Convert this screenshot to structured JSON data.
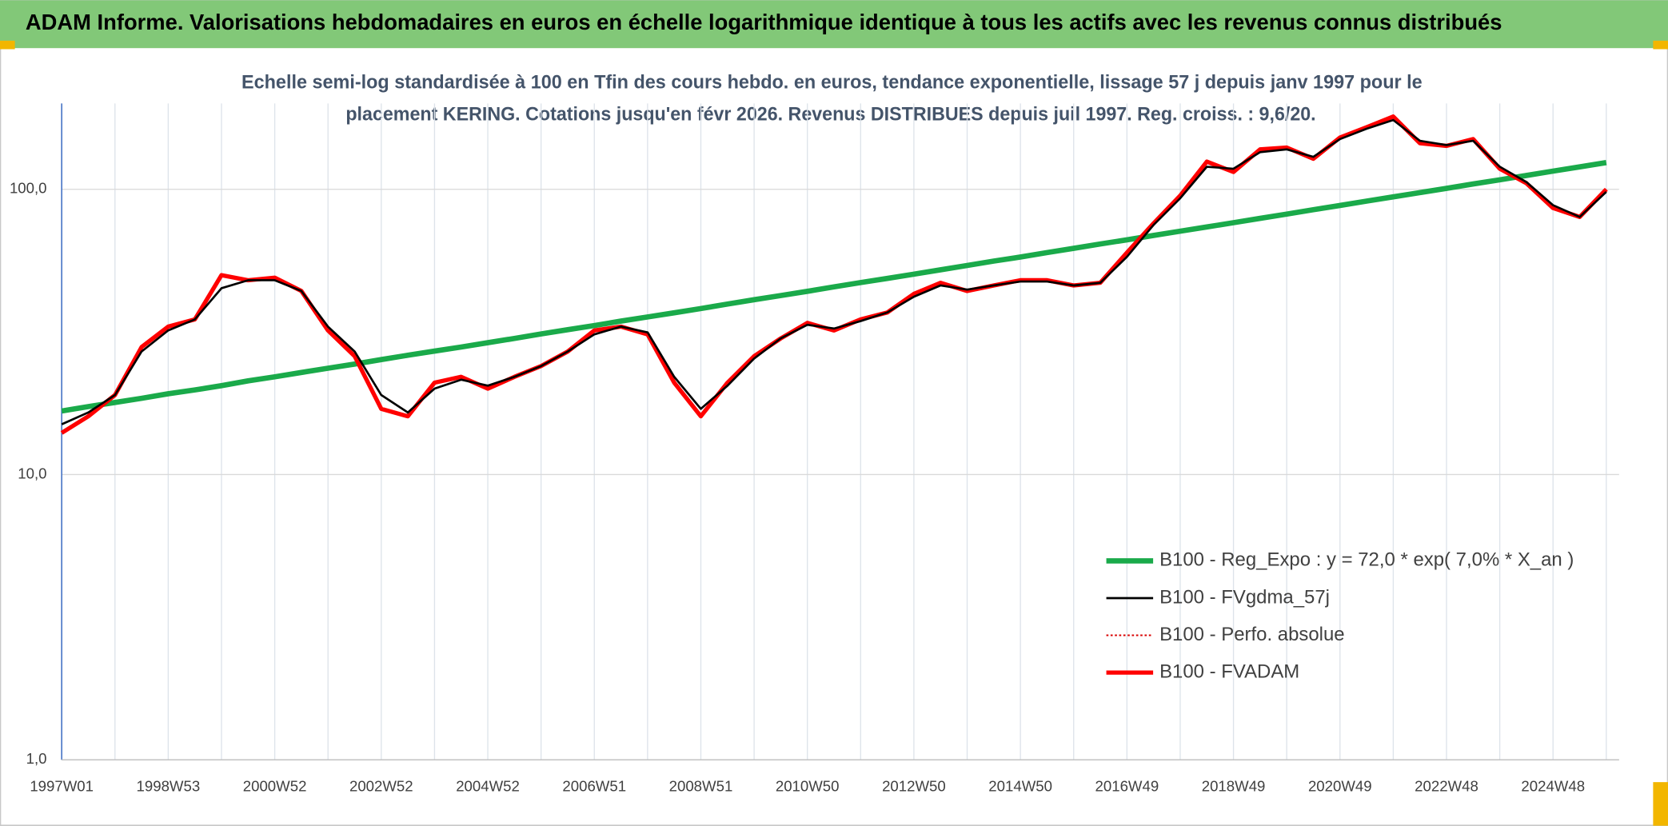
{
  "chart_data": {
    "type": "line",
    "title": "ADAM Informe. Valorisations hebdomadaires en euros en échelle logarithmique identique à tous les actifs avec les revenus connus distribués",
    "subtitle": [
      "Echelle semi-log standardisée à 100 en Tfin des cours hebdo. en euros, tendance exponentielle, lissage 57 j depuis janv 1997 pour le",
      "placement KERING. Cotations jusqu'en févr 2026. Revenus DISTRIBUES depuis juil 1997. Reg. croiss. : 9,6/20."
    ],
    "log_scale": true,
    "grid": true,
    "legend": "lower right",
    "ylim": [
      1,
      200
    ],
    "yticks": [
      {
        "value": 1,
        "label": "1,0"
      },
      {
        "value": 10,
        "label": "10,0"
      },
      {
        "value": 100,
        "label": "100,0"
      }
    ],
    "categories": [
      "1997W01",
      null,
      null,
      null,
      "1998W53",
      null,
      null,
      null,
      "2000W52",
      null,
      null,
      null,
      "2002W52",
      null,
      null,
      null,
      "2004W52",
      null,
      null,
      null,
      "2006W51",
      null,
      null,
      null,
      "2008W51",
      null,
      null,
      null,
      "2010W50",
      null,
      null,
      null,
      "2012W50",
      null,
      null,
      null,
      "2014W50",
      null,
      null,
      null,
      "2016W49",
      null,
      null,
      null,
      "2018W49",
      null,
      null,
      null,
      "2020W49",
      null,
      null,
      null,
      "2022W48",
      null,
      null,
      null,
      "2024W48",
      null,
      null
    ],
    "series": [
      {
        "name": "B100 - Reg_Expo : y = 72,0 * exp( 7,0% *  X_an )",
        "color": "#1aaa4a",
        "dash": "solid",
        "values": [
          16.7,
          17.3,
          17.9,
          18.5,
          19.2,
          19.8,
          20.5,
          21.3,
          22.0,
          22.8,
          23.6,
          24.4,
          25.3,
          26.2,
          27.1,
          28.0,
          29.0,
          30.0,
          31.1,
          32.2,
          33.3,
          34.5,
          35.7,
          36.9,
          38.2,
          39.6,
          41.0,
          42.4,
          43.9,
          45.5,
          47.1,
          48.7,
          50.4,
          52.2,
          54.1,
          56.0,
          57.9,
          60.0,
          62.1,
          64.3,
          66.5,
          68.9,
          71.3,
          73.8,
          76.4,
          79.1,
          81.9,
          84.8,
          87.8,
          90.9,
          94.1,
          97.4,
          100.8,
          104.4,
          108.0,
          111.8,
          115.8,
          119.9,
          124.1
        ]
      },
      {
        "name": "B100 - FVgdma_57j",
        "color": "#000000",
        "dash": "solid",
        "values": [
          15,
          16.5,
          19,
          27,
          32,
          35,
          45,
          48,
          48,
          44,
          33,
          27,
          19,
          16.5,
          20,
          21.5,
          20.5,
          22,
          24,
          27,
          31,
          33,
          31.5,
          22,
          17,
          20.5,
          25.5,
          30,
          33.5,
          32.5,
          34.5,
          37,
          42,
          46,
          44.5,
          46,
          47.5,
          47.5,
          46,
          47,
          58,
          75,
          93,
          120,
          118,
          135,
          138,
          130,
          150,
          163,
          175,
          148,
          143,
          148,
          120,
          106,
          88,
          80,
          98
        ]
      },
      {
        "name": "B100 - Perfo. absolue",
        "color": "#d80000",
        "dash": "dotted",
        "values": [
          14,
          16,
          19,
          28,
          33,
          35,
          50,
          48,
          49,
          44,
          32,
          26,
          17,
          16,
          21,
          22,
          20,
          22,
          24,
          27,
          32,
          33,
          31,
          21,
          16,
          21,
          26,
          30,
          34,
          32,
          35,
          37,
          43,
          47,
          44,
          46,
          48,
          48,
          46,
          47,
          60,
          76,
          95,
          125,
          115,
          138,
          140,
          128,
          152,
          165,
          180,
          145,
          142,
          150,
          118,
          105,
          86,
          80,
          100
        ]
      },
      {
        "name": "B100 - FVADAM",
        "color": "#ff0000",
        "dash": "solid",
        "values": [
          14,
          16,
          19,
          28,
          33,
          35,
          50,
          48,
          49,
          44,
          32,
          26,
          17,
          16,
          21,
          22,
          20,
          22,
          24,
          27,
          32,
          33,
          31,
          21,
          16,
          21,
          26,
          30,
          34,
          32,
          35,
          37,
          43,
          47,
          44,
          46,
          48,
          48,
          46,
          47,
          60,
          76,
          95,
          125,
          115,
          138,
          140,
          128,
          152,
          165,
          180,
          145,
          142,
          150,
          118,
          105,
          86,
          80,
          100
        ]
      }
    ]
  }
}
